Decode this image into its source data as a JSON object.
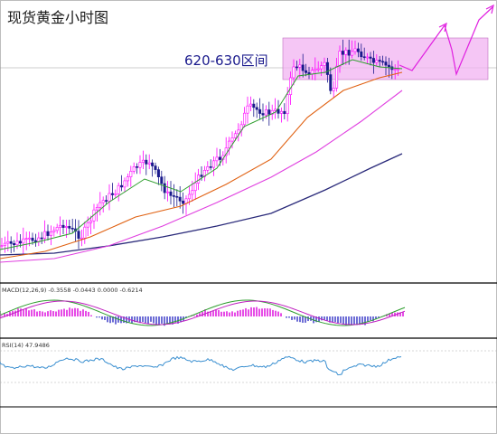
{
  "title": "现货黄金小时图",
  "zone_label": "620-630区间",
  "indicators": {
    "macd_label": "MACD(12,26,9) -0.3558 -0.0443 0.0000 -0.6214",
    "rsi_label": "RSI(14) 47.9486"
  },
  "colors": {
    "zone_fill": "#f2b3f2",
    "candle_up": "#ff00ff",
    "candle_down": "#1a1a8c",
    "ma_green": "#2e9e2e",
    "ma_orange": "#e06010",
    "ma_pink": "#e040e0",
    "ma_navy": "#2a2a7a",
    "forecast": "#e020e0",
    "macd_hist": "#e020e0",
    "macd_line": "#2e9e2e",
    "signal_line": "#c020c0",
    "rsi_line": "#3a8fd0"
  },
  "chart_data": {
    "type": "candlestick",
    "title": "现货黄金小时图",
    "annotations": [
      "620-630区间"
    ],
    "series": [
      {
        "kind": "price",
        "trend": "upward channel then consolidation in 620-630 zone"
      },
      {
        "kind": "forecast",
        "shape": "zigzag upward"
      }
    ],
    "indicators": [
      "MACD(12,26,9)",
      "RSI(14)"
    ],
    "grid": false
  }
}
